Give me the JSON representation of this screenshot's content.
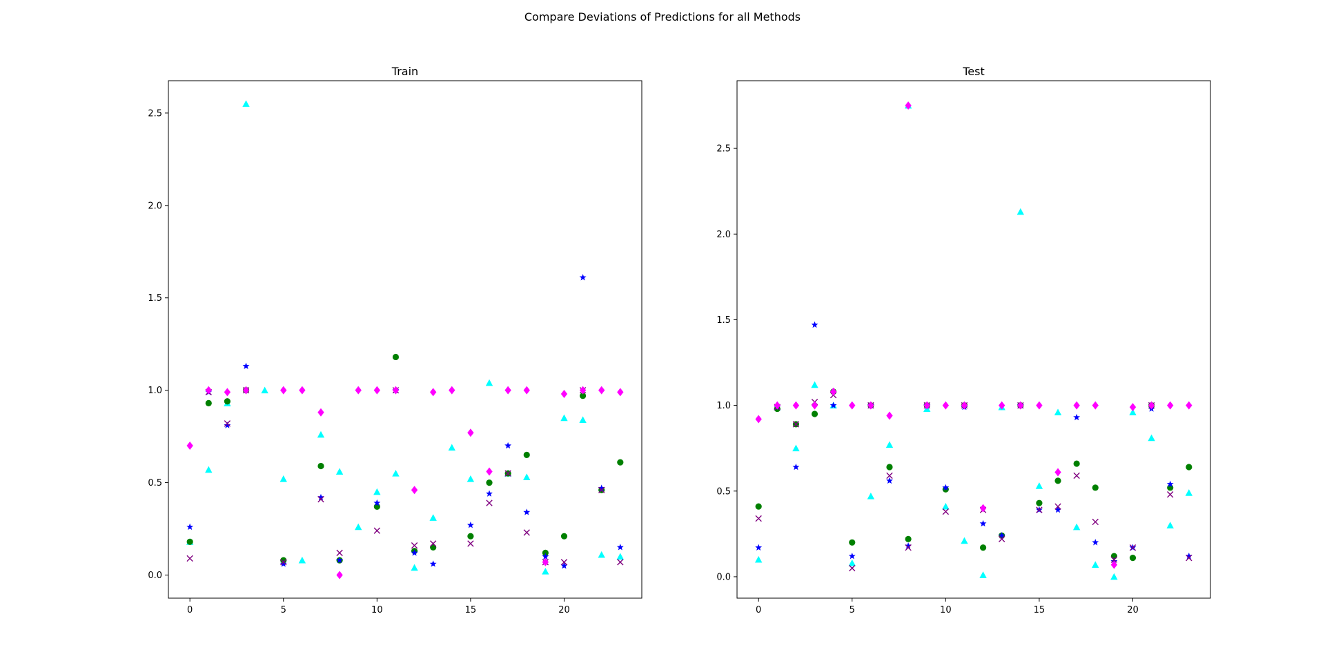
{
  "figure_title": "Compare Deviations of Predictions for all Methods",
  "colors": {
    "cyan": "#00ffff",
    "magenta": "#ff00ff",
    "green": "#008000",
    "blue": "#0000ff",
    "purple": "#800080"
  },
  "chart_data": [
    {
      "type": "scatter",
      "title": "Train",
      "xlabel": "",
      "ylabel": "",
      "xlim": [
        -1.15,
        24.15
      ],
      "ylim": [
        -0.125,
        2.675
      ],
      "xticks": [
        0,
        5,
        10,
        15,
        20
      ],
      "yticks": [
        0.0,
        0.5,
        1.0,
        1.5,
        2.0,
        2.5
      ],
      "grid": false,
      "legend": "none",
      "x": [
        0,
        1,
        2,
        3,
        4,
        5,
        6,
        7,
        8,
        9,
        10,
        11,
        12,
        13,
        14,
        15,
        16,
        17,
        18,
        19,
        20,
        21,
        22,
        23
      ],
      "series": [
        {
          "marker": "triangle",
          "color": "cyan",
          "values": [
            0.18,
            0.57,
            0.93,
            2.55,
            1.0,
            0.52,
            0.08,
            0.76,
            0.56,
            0.26,
            0.45,
            0.55,
            0.04,
            0.31,
            0.69,
            0.52,
            1.04,
            0.55,
            0.53,
            0.02,
            0.85,
            0.84,
            0.11,
            0.1
          ]
        },
        {
          "marker": "circle",
          "color": "green",
          "values": [
            0.18,
            0.93,
            0.94,
            1.0,
            null,
            0.08,
            null,
            0.59,
            0.08,
            null,
            0.37,
            1.18,
            0.13,
            0.15,
            null,
            0.21,
            0.5,
            0.55,
            0.65,
            0.12,
            0.21,
            0.97,
            0.46,
            0.61
          ]
        },
        {
          "marker": "star",
          "color": "blue",
          "values": [
            0.26,
            0.99,
            0.81,
            1.13,
            null,
            0.06,
            null,
            0.42,
            0.08,
            null,
            0.39,
            1.0,
            0.12,
            0.06,
            null,
            0.27,
            0.44,
            0.7,
            0.34,
            0.1,
            0.05,
            1.61,
            0.47,
            0.15
          ]
        },
        {
          "marker": "x",
          "color": "purple",
          "values": [
            0.09,
            0.99,
            0.82,
            1.0,
            null,
            0.07,
            null,
            0.41,
            0.12,
            null,
            0.24,
            1.0,
            0.16,
            0.17,
            null,
            0.17,
            0.39,
            0.55,
            0.23,
            0.07,
            0.07,
            1.0,
            0.46,
            0.07
          ]
        },
        {
          "marker": "diamond",
          "color": "magenta",
          "values": [
            0.7,
            1.0,
            0.99,
            1.0,
            null,
            1.0,
            1.0,
            0.88,
            0.0,
            1.0,
            1.0,
            1.0,
            0.46,
            0.99,
            1.0,
            0.77,
            0.56,
            1.0,
            1.0,
            0.07,
            0.98,
            1.0,
            1.0,
            0.99
          ]
        }
      ]
    },
    {
      "type": "scatter",
      "title": "Test",
      "xlabel": "",
      "ylabel": "",
      "xlim": [
        -1.15,
        24.15
      ],
      "ylim": [
        -0.125,
        2.895
      ],
      "xticks": [
        0,
        5,
        10,
        15,
        20
      ],
      "yticks": [
        0.0,
        0.5,
        1.0,
        1.5,
        2.0,
        2.5
      ],
      "grid": false,
      "legend": "none",
      "x": [
        0,
        1,
        2,
        3,
        4,
        5,
        6,
        7,
        8,
        9,
        10,
        11,
        12,
        13,
        14,
        15,
        16,
        17,
        18,
        19,
        20,
        21,
        22,
        23
      ],
      "series": [
        {
          "marker": "triangle",
          "color": "cyan",
          "values": [
            0.1,
            0.99,
            0.75,
            1.12,
            1.0,
            0.08,
            0.47,
            0.77,
            2.75,
            0.98,
            0.41,
            0.21,
            0.01,
            0.99,
            2.13,
            0.53,
            0.96,
            0.29,
            0.07,
            0.0,
            0.96,
            0.81,
            0.3,
            0.49
          ]
        },
        {
          "marker": "circle",
          "color": "green",
          "values": [
            0.41,
            0.98,
            0.89,
            0.95,
            1.08,
            0.2,
            1.0,
            0.64,
            0.22,
            1.0,
            0.51,
            1.0,
            0.17,
            0.24,
            1.0,
            0.43,
            0.56,
            0.66,
            0.52,
            0.12,
            0.11,
            1.0,
            0.52,
            0.64
          ]
        },
        {
          "marker": "star",
          "color": "blue",
          "values": [
            0.17,
            0.99,
            0.64,
            1.47,
            1.0,
            0.12,
            1.0,
            0.56,
            0.18,
            1.0,
            0.52,
            0.99,
            0.31,
            0.24,
            1.0,
            0.39,
            0.39,
            0.93,
            0.2,
            0.09,
            0.17,
            0.98,
            0.54,
            0.12
          ]
        },
        {
          "marker": "x",
          "color": "purple",
          "values": [
            0.34,
            0.99,
            0.89,
            1.02,
            1.06,
            0.05,
            1.0,
            0.59,
            0.17,
            1.0,
            0.38,
            1.0,
            0.39,
            0.22,
            1.0,
            0.39,
            0.41,
            0.59,
            0.32,
            0.1,
            0.17,
            1.0,
            0.48,
            0.11
          ]
        },
        {
          "marker": "diamond",
          "color": "magenta",
          "values": [
            0.92,
            1.0,
            1.0,
            1.0,
            1.08,
            1.0,
            1.0,
            0.94,
            2.75,
            1.0,
            1.0,
            1.0,
            0.4,
            1.0,
            1.0,
            1.0,
            0.61,
            1.0,
            1.0,
            0.07,
            0.99,
            1.0,
            1.0,
            1.0
          ]
        }
      ]
    }
  ]
}
